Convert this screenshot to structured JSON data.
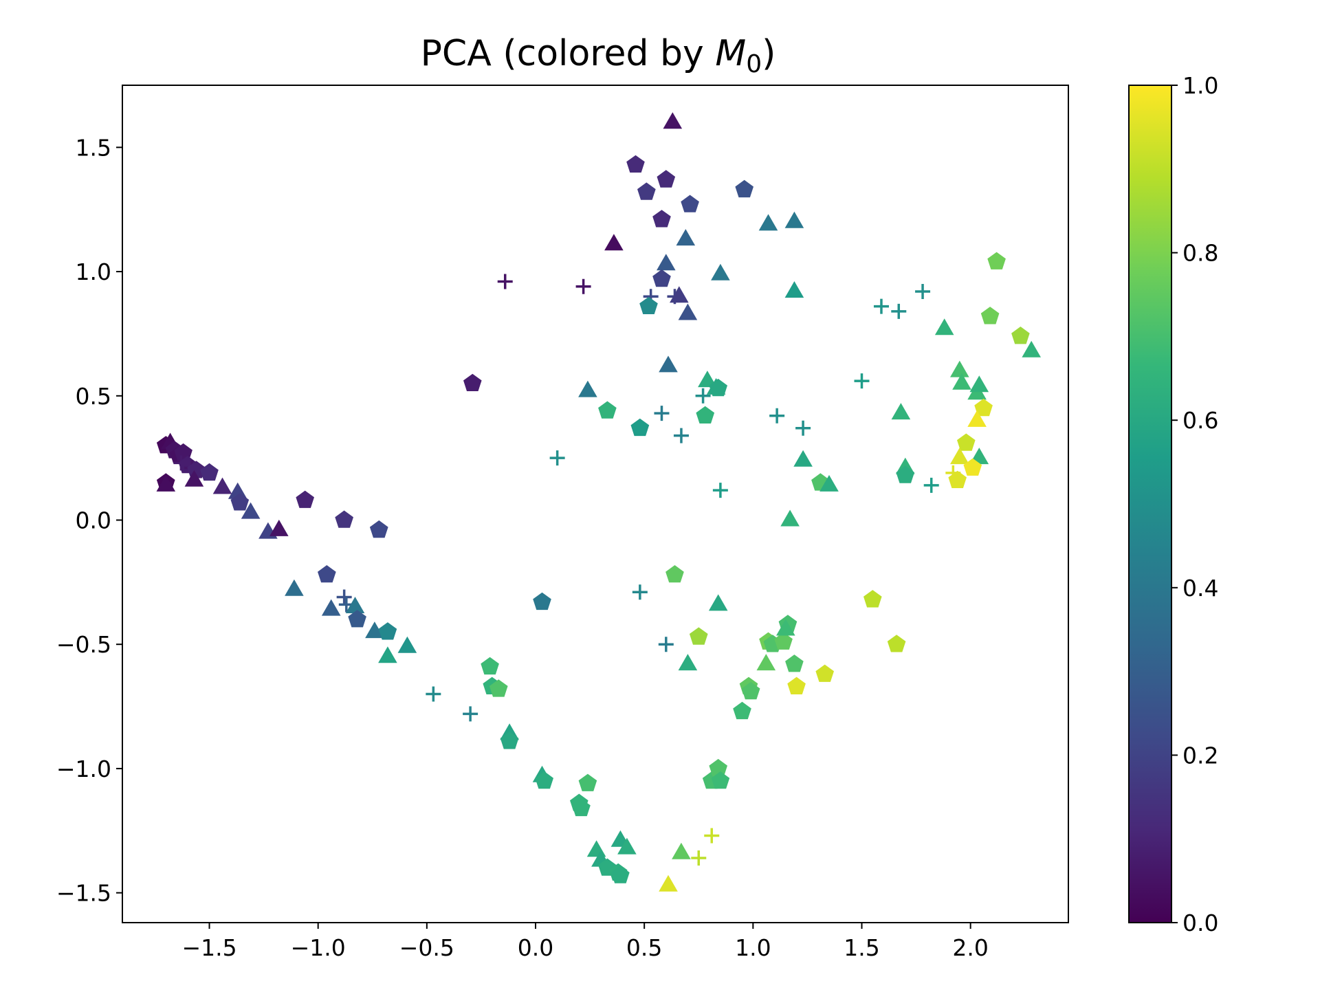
{
  "chart_data": {
    "type": "scatter",
    "title": "PCA (colored by ",
    "title_symbol": "M",
    "title_subscript": "0",
    "title_suffix": ")",
    "xlabel": "",
    "ylabel": "",
    "xlim": [
      -1.9,
      2.45
    ],
    "ylim": [
      -1.62,
      1.75
    ],
    "xticks": [
      -1.5,
      -1.0,
      -0.5,
      0.0,
      0.5,
      1.0,
      1.5,
      2.0
    ],
    "xtick_labels": [
      "−1.5",
      "−1.0",
      "−0.5",
      "0.0",
      "0.5",
      "1.0",
      "1.5",
      "2.0"
    ],
    "yticks": [
      -1.5,
      -1.0,
      -0.5,
      0.0,
      0.5,
      1.0,
      1.5
    ],
    "ytick_labels": [
      "−1.5",
      "−1.0",
      "−0.5",
      "0.0",
      "0.5",
      "1.0",
      "1.5"
    ],
    "grid": false,
    "colormap": "viridis",
    "colorbar": {
      "range": [
        0.0,
        1.0
      ],
      "ticks": [
        0.0,
        0.2,
        0.4,
        0.6,
        0.8,
        1.0
      ],
      "tick_labels": [
        "0.0",
        "0.2",
        "0.4",
        "0.6",
        "0.8",
        "1.0"
      ]
    },
    "colormap_stops": [
      "#440154",
      "#482878",
      "#3e4a89",
      "#31688e",
      "#26828e",
      "#1f9e89",
      "#35b779",
      "#6ece58",
      "#b5de2b",
      "#fde725"
    ],
    "marker_types": [
      "pentagon",
      "triangle",
      "plus"
    ],
    "points": [
      {
        "x": -1.7,
        "y": 0.3,
        "c": 0.02,
        "m": "pentagon"
      },
      {
        "x": -1.68,
        "y": 0.31,
        "c": 0.03,
        "m": "triangle"
      },
      {
        "x": -1.66,
        "y": 0.28,
        "c": 0.05,
        "m": "pentagon"
      },
      {
        "x": -1.64,
        "y": 0.26,
        "c": 0.04,
        "m": "pentagon"
      },
      {
        "x": -1.62,
        "y": 0.27,
        "c": 0.06,
        "m": "pentagon"
      },
      {
        "x": -1.63,
        "y": 0.23,
        "c": 0.07,
        "m": "plus"
      },
      {
        "x": -1.6,
        "y": 0.22,
        "c": 0.08,
        "m": "pentagon"
      },
      {
        "x": -1.58,
        "y": 0.21,
        "c": 0.06,
        "m": "plus"
      },
      {
        "x": -1.56,
        "y": 0.2,
        "c": 0.09,
        "m": "pentagon"
      },
      {
        "x": -1.7,
        "y": 0.15,
        "c": 0.02,
        "m": "pentagon"
      },
      {
        "x": -1.7,
        "y": 0.14,
        "c": 0.03,
        "m": "triangle"
      },
      {
        "x": -1.57,
        "y": 0.16,
        "c": 0.05,
        "m": "triangle"
      },
      {
        "x": -1.5,
        "y": 0.19,
        "c": 0.12,
        "m": "pentagon"
      },
      {
        "x": -1.44,
        "y": 0.13,
        "c": 0.1,
        "m": "triangle"
      },
      {
        "x": -1.37,
        "y": 0.11,
        "c": 0.2,
        "m": "triangle"
      },
      {
        "x": -1.36,
        "y": 0.07,
        "c": 0.18,
        "m": "pentagon"
      },
      {
        "x": -1.31,
        "y": 0.03,
        "c": 0.22,
        "m": "triangle"
      },
      {
        "x": -1.23,
        "y": -0.05,
        "c": 0.2,
        "m": "triangle"
      },
      {
        "x": -1.18,
        "y": -0.04,
        "c": 0.05,
        "m": "triangle"
      },
      {
        "x": -1.06,
        "y": 0.08,
        "c": 0.1,
        "m": "pentagon"
      },
      {
        "x": -0.88,
        "y": 0.0,
        "c": 0.15,
        "m": "pentagon"
      },
      {
        "x": -0.72,
        "y": -0.04,
        "c": 0.22,
        "m": "pentagon"
      },
      {
        "x": -0.96,
        "y": -0.22,
        "c": 0.22,
        "m": "pentagon"
      },
      {
        "x": -1.11,
        "y": -0.28,
        "c": 0.36,
        "m": "triangle"
      },
      {
        "x": -0.94,
        "y": -0.36,
        "c": 0.3,
        "m": "triangle"
      },
      {
        "x": -0.88,
        "y": -0.31,
        "c": 0.25,
        "m": "plus"
      },
      {
        "x": -0.87,
        "y": -0.34,
        "c": 0.3,
        "m": "plus"
      },
      {
        "x": -0.83,
        "y": -0.35,
        "c": 0.4,
        "m": "triangle"
      },
      {
        "x": -0.82,
        "y": -0.4,
        "c": 0.28,
        "m": "pentagon"
      },
      {
        "x": -0.74,
        "y": -0.45,
        "c": 0.38,
        "m": "triangle"
      },
      {
        "x": -0.68,
        "y": -0.45,
        "c": 0.47,
        "m": "pentagon"
      },
      {
        "x": -0.68,
        "y": -0.55,
        "c": 0.58,
        "m": "triangle"
      },
      {
        "x": -0.59,
        "y": -0.51,
        "c": 0.52,
        "m": "triangle"
      },
      {
        "x": -0.47,
        "y": -0.7,
        "c": 0.48,
        "m": "plus"
      },
      {
        "x": -0.3,
        "y": -0.78,
        "c": 0.45,
        "m": "plus"
      },
      {
        "x": -0.21,
        "y": -0.59,
        "c": 0.68,
        "m": "pentagon"
      },
      {
        "x": -0.2,
        "y": -0.67,
        "c": 0.65,
        "m": "pentagon"
      },
      {
        "x": -0.17,
        "y": -0.68,
        "c": 0.72,
        "m": "pentagon"
      },
      {
        "x": -0.12,
        "y": -0.86,
        "c": 0.58,
        "m": "triangle"
      },
      {
        "x": -0.12,
        "y": -0.89,
        "c": 0.6,
        "m": "pentagon"
      },
      {
        "x": 0.03,
        "y": -1.03,
        "c": 0.6,
        "m": "triangle"
      },
      {
        "x": 0.04,
        "y": -1.05,
        "c": 0.62,
        "m": "pentagon"
      },
      {
        "x": 0.2,
        "y": -1.14,
        "c": 0.65,
        "m": "pentagon"
      },
      {
        "x": 0.21,
        "y": -1.16,
        "c": 0.65,
        "m": "pentagon"
      },
      {
        "x": 0.24,
        "y": -1.06,
        "c": 0.7,
        "m": "pentagon"
      },
      {
        "x": 0.28,
        "y": -1.33,
        "c": 0.62,
        "m": "triangle"
      },
      {
        "x": 0.3,
        "y": -1.37,
        "c": 0.6,
        "m": "triangle"
      },
      {
        "x": 0.33,
        "y": -1.4,
        "c": 0.62,
        "m": "pentagon"
      },
      {
        "x": 0.38,
        "y": -1.42,
        "c": 0.63,
        "m": "pentagon"
      },
      {
        "x": 0.39,
        "y": -1.43,
        "c": 0.62,
        "m": "pentagon"
      },
      {
        "x": 0.39,
        "y": -1.29,
        "c": 0.6,
        "m": "triangle"
      },
      {
        "x": 0.42,
        "y": -1.32,
        "c": 0.62,
        "m": "triangle"
      },
      {
        "x": 0.61,
        "y": -1.47,
        "c": 0.95,
        "m": "triangle"
      },
      {
        "x": 0.67,
        "y": -1.34,
        "c": 0.75,
        "m": "triangle"
      },
      {
        "x": 0.75,
        "y": -1.36,
        "c": 0.9,
        "m": "plus"
      },
      {
        "x": 0.81,
        "y": -1.27,
        "c": 0.92,
        "m": "plus"
      },
      {
        "x": 0.81,
        "y": -1.05,
        "c": 0.7,
        "m": "pentagon"
      },
      {
        "x": 0.84,
        "y": -1.0,
        "c": 0.72,
        "m": "pentagon"
      },
      {
        "x": 0.85,
        "y": -1.05,
        "c": 0.68,
        "m": "pentagon"
      },
      {
        "x": 0.03,
        "y": -0.33,
        "c": 0.4,
        "m": "pentagon"
      },
      {
        "x": 0.48,
        "y": -0.29,
        "c": 0.47,
        "m": "plus"
      },
      {
        "x": 0.6,
        "y": -0.5,
        "c": 0.42,
        "m": "plus"
      },
      {
        "x": 0.64,
        "y": -0.22,
        "c": 0.75,
        "m": "pentagon"
      },
      {
        "x": 0.7,
        "y": -0.58,
        "c": 0.62,
        "m": "triangle"
      },
      {
        "x": 0.75,
        "y": -0.47,
        "c": 0.85,
        "m": "pentagon"
      },
      {
        "x": 0.84,
        "y": -0.34,
        "c": 0.6,
        "m": "triangle"
      },
      {
        "x": 0.95,
        "y": -0.77,
        "c": 0.68,
        "m": "pentagon"
      },
      {
        "x": 0.98,
        "y": -0.67,
        "c": 0.75,
        "m": "pentagon"
      },
      {
        "x": 0.99,
        "y": -0.69,
        "c": 0.72,
        "m": "pentagon"
      },
      {
        "x": 1.06,
        "y": -0.58,
        "c": 0.75,
        "m": "triangle"
      },
      {
        "x": 1.07,
        "y": -0.49,
        "c": 0.78,
        "m": "pentagon"
      },
      {
        "x": 1.09,
        "y": -0.5,
        "c": 0.72,
        "m": "pentagon"
      },
      {
        "x": 1.14,
        "y": -0.49,
        "c": 0.75,
        "m": "pentagon"
      },
      {
        "x": 1.16,
        "y": -0.42,
        "c": 0.7,
        "m": "pentagon"
      },
      {
        "x": 1.15,
        "y": -0.44,
        "c": 0.68,
        "m": "triangle"
      },
      {
        "x": 1.19,
        "y": -0.58,
        "c": 0.72,
        "m": "pentagon"
      },
      {
        "x": 1.2,
        "y": -0.67,
        "c": 0.95,
        "m": "pentagon"
      },
      {
        "x": 1.33,
        "y": -0.62,
        "c": 0.93,
        "m": "pentagon"
      },
      {
        "x": 1.55,
        "y": -0.32,
        "c": 0.9,
        "m": "pentagon"
      },
      {
        "x": 1.66,
        "y": -0.5,
        "c": 0.9,
        "m": "pentagon"
      },
      {
        "x": 0.63,
        "y": 1.6,
        "c": 0.05,
        "m": "triangle"
      },
      {
        "x": 0.46,
        "y": 1.43,
        "c": 0.12,
        "m": "pentagon"
      },
      {
        "x": 0.51,
        "y": 1.32,
        "c": 0.17,
        "m": "pentagon"
      },
      {
        "x": 0.6,
        "y": 1.37,
        "c": 0.12,
        "m": "pentagon"
      },
      {
        "x": 0.58,
        "y": 1.21,
        "c": 0.12,
        "m": "pentagon"
      },
      {
        "x": 0.71,
        "y": 1.27,
        "c": 0.22,
        "m": "pentagon"
      },
      {
        "x": 0.36,
        "y": 1.11,
        "c": 0.03,
        "m": "triangle"
      },
      {
        "x": 0.69,
        "y": 1.13,
        "c": 0.32,
        "m": "triangle"
      },
      {
        "x": 0.96,
        "y": 1.33,
        "c": 0.25,
        "m": "pentagon"
      },
      {
        "x": 1.07,
        "y": 1.19,
        "c": 0.4,
        "m": "triangle"
      },
      {
        "x": 1.19,
        "y": 1.2,
        "c": 0.4,
        "m": "triangle"
      },
      {
        "x": -0.14,
        "y": 0.96,
        "c": 0.05,
        "m": "plus"
      },
      {
        "x": 0.22,
        "y": 0.94,
        "c": 0.05,
        "m": "plus"
      },
      {
        "x": 0.6,
        "y": 1.03,
        "c": 0.28,
        "m": "triangle"
      },
      {
        "x": 0.58,
        "y": 0.97,
        "c": 0.2,
        "m": "pentagon"
      },
      {
        "x": 0.53,
        "y": 0.9,
        "c": 0.22,
        "m": "plus"
      },
      {
        "x": 0.52,
        "y": 0.86,
        "c": 0.48,
        "m": "pentagon"
      },
      {
        "x": 0.64,
        "y": 0.9,
        "c": 0.2,
        "m": "plus"
      },
      {
        "x": 0.66,
        "y": 0.9,
        "c": 0.18,
        "m": "triangle"
      },
      {
        "x": 0.7,
        "y": 0.83,
        "c": 0.25,
        "m": "triangle"
      },
      {
        "x": 0.85,
        "y": 0.99,
        "c": 0.4,
        "m": "triangle"
      },
      {
        "x": 1.19,
        "y": 0.92,
        "c": 0.55,
        "m": "triangle"
      },
      {
        "x": -0.29,
        "y": 0.55,
        "c": 0.08,
        "m": "pentagon"
      },
      {
        "x": 0.61,
        "y": 0.62,
        "c": 0.35,
        "m": "triangle"
      },
      {
        "x": 0.24,
        "y": 0.52,
        "c": 0.4,
        "m": "triangle"
      },
      {
        "x": 0.33,
        "y": 0.44,
        "c": 0.65,
        "m": "pentagon"
      },
      {
        "x": 0.48,
        "y": 0.37,
        "c": 0.55,
        "m": "pentagon"
      },
      {
        "x": 0.58,
        "y": 0.43,
        "c": 0.42,
        "m": "plus"
      },
      {
        "x": 0.67,
        "y": 0.34,
        "c": 0.45,
        "m": "plus"
      },
      {
        "x": 0.1,
        "y": 0.25,
        "c": 0.5,
        "m": "plus"
      },
      {
        "x": 0.77,
        "y": 0.5,
        "c": 0.5,
        "m": "plus"
      },
      {
        "x": 0.79,
        "y": 0.56,
        "c": 0.62,
        "m": "triangle"
      },
      {
        "x": 0.83,
        "y": 0.53,
        "c": 0.6,
        "m": "triangle"
      },
      {
        "x": 0.84,
        "y": 0.53,
        "c": 0.6,
        "m": "pentagon"
      },
      {
        "x": 0.78,
        "y": 0.42,
        "c": 0.65,
        "m": "pentagon"
      },
      {
        "x": 0.85,
        "y": 0.12,
        "c": 0.55,
        "m": "plus"
      },
      {
        "x": 1.11,
        "y": 0.42,
        "c": 0.5,
        "m": "plus"
      },
      {
        "x": 1.23,
        "y": 0.37,
        "c": 0.5,
        "m": "plus"
      },
      {
        "x": 1.23,
        "y": 0.24,
        "c": 0.6,
        "m": "triangle"
      },
      {
        "x": 1.31,
        "y": 0.15,
        "c": 0.72,
        "m": "pentagon"
      },
      {
        "x": 1.35,
        "y": 0.14,
        "c": 0.62,
        "m": "triangle"
      },
      {
        "x": 1.17,
        "y": 0.0,
        "c": 0.65,
        "m": "triangle"
      },
      {
        "x": 1.5,
        "y": 0.56,
        "c": 0.55,
        "m": "plus"
      },
      {
        "x": 1.59,
        "y": 0.86,
        "c": 0.52,
        "m": "plus"
      },
      {
        "x": 1.67,
        "y": 0.84,
        "c": 0.5,
        "m": "plus"
      },
      {
        "x": 1.78,
        "y": 0.92,
        "c": 0.5,
        "m": "plus"
      },
      {
        "x": 1.68,
        "y": 0.43,
        "c": 0.65,
        "m": "triangle"
      },
      {
        "x": 1.7,
        "y": 0.21,
        "c": 0.65,
        "m": "triangle"
      },
      {
        "x": 1.7,
        "y": 0.18,
        "c": 0.62,
        "m": "pentagon"
      },
      {
        "x": 1.82,
        "y": 0.14,
        "c": 0.55,
        "m": "plus"
      },
      {
        "x": 1.88,
        "y": 0.77,
        "c": 0.65,
        "m": "triangle"
      },
      {
        "x": 2.12,
        "y": 1.04,
        "c": 0.78,
        "m": "pentagon"
      },
      {
        "x": 2.09,
        "y": 0.82,
        "c": 0.78,
        "m": "pentagon"
      },
      {
        "x": 2.23,
        "y": 0.74,
        "c": 0.85,
        "m": "pentagon"
      },
      {
        "x": 2.28,
        "y": 0.68,
        "c": 0.65,
        "m": "triangle"
      },
      {
        "x": 1.95,
        "y": 0.6,
        "c": 0.7,
        "m": "triangle"
      },
      {
        "x": 1.96,
        "y": 0.55,
        "c": 0.68,
        "m": "triangle"
      },
      {
        "x": 2.03,
        "y": 0.51,
        "c": 0.68,
        "m": "triangle"
      },
      {
        "x": 2.04,
        "y": 0.54,
        "c": 0.65,
        "m": "triangle"
      },
      {
        "x": 2.06,
        "y": 0.45,
        "c": 0.95,
        "m": "pentagon"
      },
      {
        "x": 2.03,
        "y": 0.4,
        "c": 0.98,
        "m": "triangle"
      },
      {
        "x": 1.98,
        "y": 0.31,
        "c": 0.92,
        "m": "pentagon"
      },
      {
        "x": 1.95,
        "y": 0.25,
        "c": 0.95,
        "m": "triangle"
      },
      {
        "x": 2.04,
        "y": 0.25,
        "c": 0.65,
        "m": "triangle"
      },
      {
        "x": 1.92,
        "y": 0.19,
        "c": 0.95,
        "m": "plus"
      },
      {
        "x": 1.94,
        "y": 0.16,
        "c": 0.95,
        "m": "pentagon"
      },
      {
        "x": 2.01,
        "y": 0.21,
        "c": 0.98,
        "m": "pentagon"
      }
    ]
  }
}
